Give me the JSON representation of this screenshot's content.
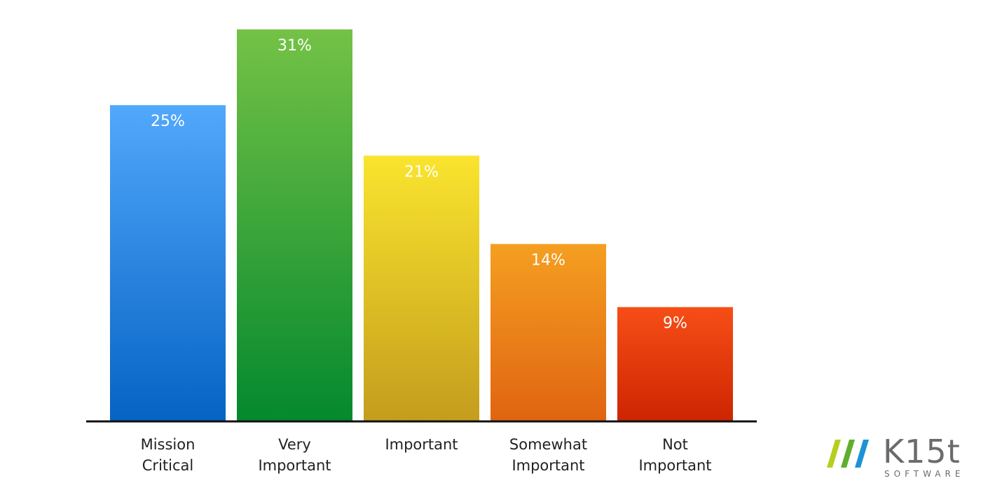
{
  "chart_data": {
    "type": "bar",
    "categories": [
      [
        "Mission",
        "Critical"
      ],
      [
        "Very",
        "Important"
      ],
      [
        "Important"
      ],
      [
        "Somewhat",
        "Important"
      ],
      [
        "Not",
        "Important"
      ]
    ],
    "values": [
      25,
      31,
      21,
      14,
      9
    ],
    "value_labels": [
      "25%",
      "31%",
      "21%",
      "14%",
      "9%"
    ],
    "ylim": [
      0,
      31
    ],
    "grid": false,
    "legend": "none",
    "colors": [
      [
        "#52a8fb",
        "#0563c4"
      ],
      [
        "#74c246",
        "#04892e"
      ],
      [
        "#fae42e",
        "#c49d1d"
      ],
      [
        "#f59f21",
        "#e06411"
      ],
      [
        "#f74e17",
        "#cd2501"
      ]
    ]
  },
  "logo": {
    "brand": "K15t",
    "sub": "SOFTWARE",
    "slash_colors": [
      "#b6cf1f",
      "#5fae2e",
      "#1d93d3"
    ]
  }
}
